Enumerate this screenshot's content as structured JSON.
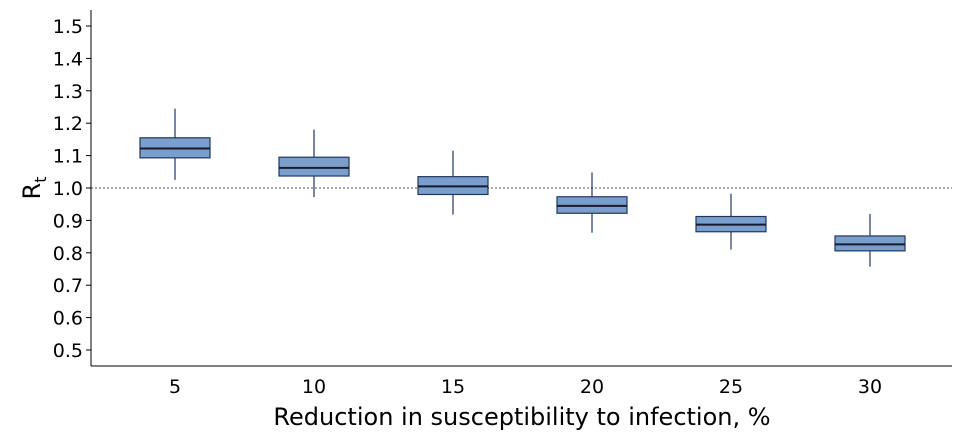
{
  "chart_data": {
    "type": "box",
    "title": "",
    "xlabel": "Reduction in susceptibility to infection, %",
    "ylabel": "R",
    "ylabel_subscript": "t",
    "categories": [
      "5",
      "10",
      "15",
      "20",
      "25",
      "30"
    ],
    "yticks": [
      "0.5",
      "0.6",
      "0.7",
      "0.8",
      "0.9",
      "1.0",
      "1.1",
      "1.2",
      "1.3",
      "1.4",
      "1.5"
    ],
    "ylim": [
      0.45,
      1.55
    ],
    "reference_line": 1.0,
    "boxes": [
      {
        "category": "5",
        "min": 1.025,
        "q1": 1.093,
        "median": 1.122,
        "q3": 1.155,
        "max": 1.245
      },
      {
        "category": "10",
        "min": 0.972,
        "q1": 1.037,
        "median": 1.062,
        "q3": 1.095,
        "max": 1.18
      },
      {
        "category": "15",
        "min": 0.918,
        "q1": 0.98,
        "median": 1.005,
        "q3": 1.035,
        "max": 1.115
      },
      {
        "category": "20",
        "min": 0.862,
        "q1": 0.922,
        "median": 0.945,
        "q3": 0.973,
        "max": 1.048
      },
      {
        "category": "25",
        "min": 0.81,
        "q1": 0.865,
        "median": 0.887,
        "q3": 0.912,
        "max": 0.982
      },
      {
        "category": "30",
        "min": 0.757,
        "q1": 0.806,
        "median": 0.826,
        "q3": 0.852,
        "max": 0.92
      }
    ],
    "colors": {
      "box_fill": "#7a9fcc",
      "box_stroke": "#1f3760",
      "median": "#1a1a2e",
      "whisker": "#1f3760",
      "axis": "#000000",
      "reference": "#555555"
    },
    "grid": false,
    "legend": "none"
  }
}
